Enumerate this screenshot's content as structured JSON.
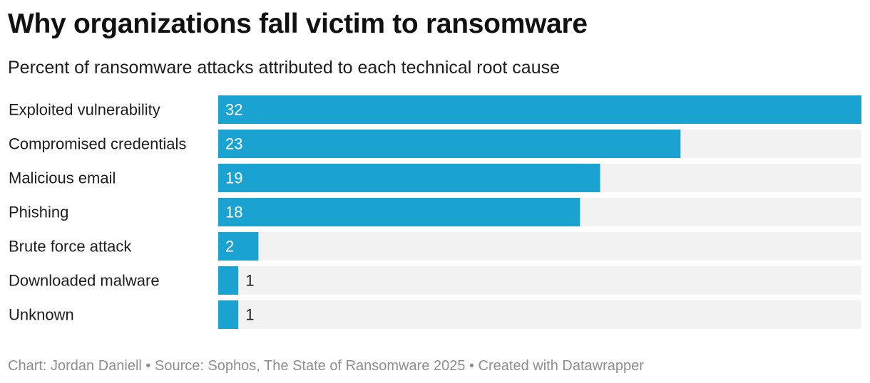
{
  "header": {
    "title": "Why organizations fall victim to ransomware",
    "subtitle": "Percent of ransomware attacks attributed to each technical root cause"
  },
  "footer": {
    "credit": "Chart: Jordan Daniell • Source: Sophos, The State of Ransomware 2025 • Created with Datawrapper"
  },
  "colors": {
    "bar": "#1aa3d0",
    "track": "#f2f2f2",
    "label_inside": "#ffffff",
    "label_outside": "#1d1d1d"
  },
  "chart_data": {
    "type": "bar",
    "orientation": "horizontal",
    "title": "Why organizations fall victim to ransomware",
    "subtitle": "Percent of ransomware attacks attributed to each technical root cause",
    "categories": [
      "Exploited vulnerability",
      "Compromised credentials",
      "Malicious email",
      "Phishing",
      "Brute force attack",
      "Downloaded malware",
      "Unknown"
    ],
    "values": [
      32,
      23,
      19,
      18,
      2,
      1,
      1
    ],
    "xlim": [
      0,
      32
    ],
    "grid": false,
    "data_labels": true
  }
}
